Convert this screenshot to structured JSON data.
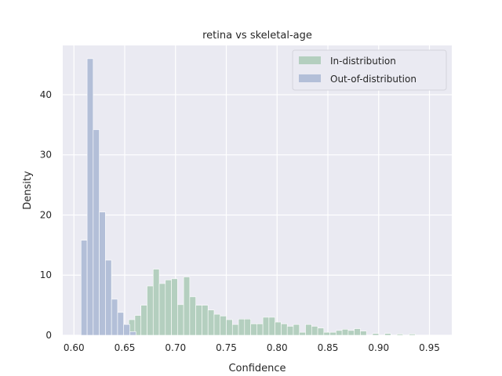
{
  "chart_data": {
    "type": "histogram",
    "title": "retina vs skeletal-age",
    "xlabel": "Confidence",
    "ylabel": "Density",
    "xlim": [
      0.589,
      0.972
    ],
    "ylim": [
      0,
      48.2
    ],
    "xticks": [
      0.6,
      0.65,
      0.7,
      0.75,
      0.8,
      0.85,
      0.9,
      0.95
    ],
    "xtick_labels": [
      "0.60",
      "0.65",
      "0.70",
      "0.75",
      "0.80",
      "0.85",
      "0.90",
      "0.95"
    ],
    "yticks": [
      0,
      10,
      20,
      30,
      40
    ],
    "ytick_labels": [
      "0",
      "10",
      "20",
      "30",
      "40"
    ],
    "grid": true,
    "legend_position": "top-right",
    "series": [
      {
        "name": "In-distribution",
        "color": "#b4cfbf",
        "bin_start": 0.6,
        "bin_width": 0.006,
        "values": [
          0,
          0,
          0,
          0,
          0,
          0,
          0,
          0,
          0.6,
          2.6,
          3.3,
          5.0,
          8.2,
          11.0,
          8.6,
          9.2,
          9.4,
          5.1,
          9.7,
          6.4,
          5.0,
          5.0,
          4.2,
          3.5,
          3.2,
          2.6,
          1.8,
          2.7,
          2.7,
          1.9,
          1.9,
          3.0,
          3.0,
          2.2,
          1.9,
          1.5,
          1.8,
          0.5,
          1.8,
          1.5,
          1.2,
          0.5,
          0.5,
          0.8,
          1.0,
          0.8,
          1.1,
          0.7,
          0,
          0.3,
          0,
          0.3,
          0,
          0.2,
          0,
          0.2
        ]
      },
      {
        "name": "Out-of-distribution",
        "color": "#b3bfd8",
        "bin_start": 0.607,
        "bin_width": 0.006,
        "values": [
          15.8,
          46.0,
          34.2,
          20.5,
          12.5,
          6.0,
          3.8,
          1.8,
          0.6
        ]
      }
    ]
  }
}
